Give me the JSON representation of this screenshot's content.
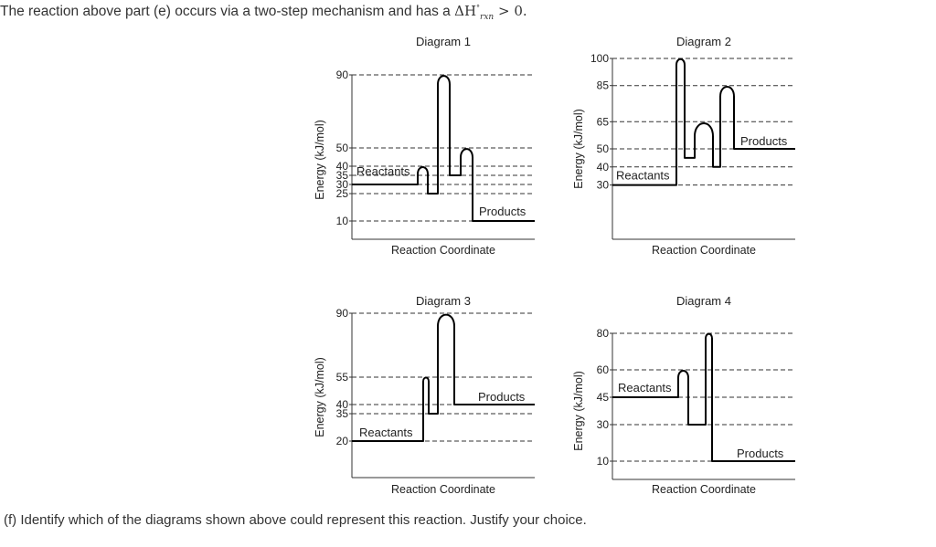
{
  "question": {
    "text": "The reaction above part (e) occurs via a two-step mechanism and has a",
    "math_symbol": "ΔH",
    "math_superscript": "°",
    "math_subscript": "rxn",
    "math_relation": "> 0."
  },
  "prompt": "(f) Identify which of the diagrams shown above could represent this reaction. Justify your choice.",
  "chart_data": [
    {
      "type": "line",
      "title": "Diagram 1",
      "xlabel": "Reaction Coordinate",
      "ylabel": "Energy (kJ/mol)",
      "yticks": [
        10,
        25,
        30,
        35,
        40,
        50,
        90
      ],
      "ylim": [
        0,
        95
      ],
      "reactants": {
        "label": "Reactants",
        "energy": 30
      },
      "products": {
        "label": "Products",
        "energy": 10
      },
      "profile": [
        {
          "stage": "reactants",
          "energy": 30
        },
        {
          "stage": "transition state 1",
          "energy": 40
        },
        {
          "stage": "intermediate",
          "energy": 25
        },
        {
          "stage": "transition state 2",
          "energy": 90
        },
        {
          "stage": "intermediate",
          "energy": 35
        },
        {
          "stage": "transition state 3",
          "energy": 50
        },
        {
          "stage": "products",
          "energy": 10
        }
      ]
    },
    {
      "type": "line",
      "title": "Diagram 2",
      "xlabel": "Reaction Coordinate",
      "ylabel": "Energy (kJ/mol)",
      "yticks": [
        30,
        40,
        50,
        65,
        85,
        100
      ],
      "ylim": [
        0,
        105
      ],
      "reactants": {
        "label": "Reactants",
        "energy": 30
      },
      "products": {
        "label": "Products",
        "energy": 50
      },
      "profile": [
        {
          "stage": "reactants",
          "energy": 30
        },
        {
          "stage": "transition state 1",
          "energy": 100
        },
        {
          "stage": "intermediate",
          "energy": 45
        },
        {
          "stage": "transition state 2",
          "energy": 65
        },
        {
          "stage": "intermediate",
          "energy": 40
        },
        {
          "stage": "transition state 3",
          "energy": 85
        },
        {
          "stage": "products",
          "energy": 50
        }
      ]
    },
    {
      "type": "line",
      "title": "Diagram 3",
      "xlabel": "Reaction Coordinate",
      "ylabel": "Energy (kJ/mol)",
      "yticks": [
        20,
        35,
        40,
        55,
        90
      ],
      "ylim": [
        0,
        95
      ],
      "reactants": {
        "label": "Reactants",
        "energy": 20
      },
      "products": {
        "label": "Products",
        "energy": 40
      },
      "profile": [
        {
          "stage": "reactants",
          "energy": 20
        },
        {
          "stage": "transition state 1",
          "energy": 55
        },
        {
          "stage": "intermediate",
          "energy": 35
        },
        {
          "stage": "transition state 2",
          "energy": 90
        },
        {
          "stage": "products",
          "energy": 40
        }
      ]
    },
    {
      "type": "line",
      "title": "Diagram 4",
      "xlabel": "Reaction Coordinate",
      "ylabel": "Energy (kJ/mol)",
      "yticks": [
        10,
        30,
        45,
        60,
        80
      ],
      "ylim": [
        0,
        85
      ],
      "reactants": {
        "label": "Reactants",
        "energy": 45
      },
      "products": {
        "label": "Products",
        "energy": 10
      },
      "profile": [
        {
          "stage": "reactants",
          "energy": 45
        },
        {
          "stage": "transition state 1",
          "energy": 60
        },
        {
          "stage": "intermediate",
          "energy": 30
        },
        {
          "stage": "transition state 2",
          "energy": 80
        },
        {
          "stage": "products",
          "energy": 10
        }
      ]
    }
  ]
}
